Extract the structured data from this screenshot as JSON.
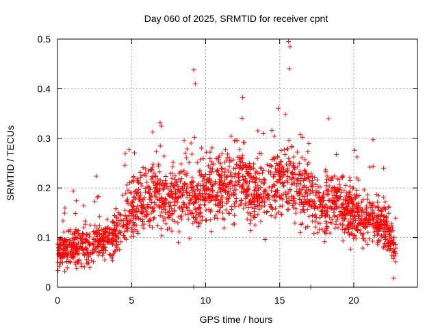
{
  "chart_data": {
    "type": "scatter",
    "title": "Day 060 of 2025, SRMTID for receiver cpnt",
    "xlabel": "GPS time / hours",
    "ylabel": "SRMTID / TECUs",
    "xlim": [
      0,
      24.3
    ],
    "ylim": [
      0,
      0.5
    ],
    "xticks": [
      0,
      5,
      10,
      15,
      20
    ],
    "xtick_labels": [
      "0",
      "5",
      "10",
      "15",
      "20"
    ],
    "yticks": [
      0,
      0.1,
      0.2,
      0.3,
      0.4,
      0.5
    ],
    "ytick_labels": [
      "0",
      "0.1",
      "0.2",
      "0.3",
      "0.4",
      "0.5"
    ],
    "grid": true,
    "marker": "+",
    "series": [
      {
        "name": "SRMTID",
        "color": "#ff0000",
        "x": [
          0.0,
          0.3,
          0.6,
          0.9,
          1.2,
          1.5,
          1.8,
          2.1,
          2.4,
          2.7,
          3.0,
          3.3,
          3.6,
          3.9,
          4.2,
          4.5,
          4.8,
          5.1,
          5.4,
          5.7,
          6.0,
          6.3,
          6.6,
          6.9,
          7.2,
          7.5,
          7.8,
          8.1,
          8.4,
          8.7,
          9.0,
          9.3,
          9.6,
          9.9,
          10.2,
          10.5,
          10.8,
          11.1,
          11.4,
          11.7,
          12.0,
          12.3,
          12.6,
          12.9,
          13.2,
          13.5,
          13.8,
          14.1,
          14.4,
          14.7,
          15.0,
          15.3,
          15.6,
          15.9,
          16.2,
          16.5,
          16.8,
          17.1,
          17.4,
          17.7,
          18.0,
          18.3,
          18.6,
          18.9,
          19.2,
          19.5,
          19.8,
          20.1,
          20.4,
          20.7,
          21.0,
          21.3,
          21.6,
          21.9,
          22.2,
          22.5,
          22.8
        ],
        "y": [
          0.07,
          0.075,
          0.08,
          0.075,
          0.08,
          0.085,
          0.08,
          0.075,
          0.085,
          0.09,
          0.09,
          0.095,
          0.1,
          0.11,
          0.12,
          0.14,
          0.15,
          0.16,
          0.17,
          0.175,
          0.18,
          0.19,
          0.19,
          0.185,
          0.18,
          0.175,
          0.175,
          0.18,
          0.19,
          0.19,
          0.18,
          0.175,
          0.18,
          0.19,
          0.195,
          0.2,
          0.2,
          0.2,
          0.2,
          0.2,
          0.21,
          0.22,
          0.215,
          0.2,
          0.19,
          0.19,
          0.2,
          0.2,
          0.2,
          0.21,
          0.21,
          0.22,
          0.22,
          0.21,
          0.2,
          0.2,
          0.2,
          0.18,
          0.17,
          0.17,
          0.17,
          0.17,
          0.17,
          0.17,
          0.15,
          0.15,
          0.15,
          0.15,
          0.14,
          0.14,
          0.14,
          0.14,
          0.13,
          0.13,
          0.12,
          0.1,
          0.07
        ],
        "notable_points": [
          {
            "x": 9.2,
            "y": 0.438
          },
          {
            "x": 9.3,
            "y": 0.41
          },
          {
            "x": 12.5,
            "y": 0.382
          },
          {
            "x": 14.9,
            "y": 0.36
          },
          {
            "x": 15.6,
            "y": 0.495
          },
          {
            "x": 15.7,
            "y": 0.485
          },
          {
            "x": 15.65,
            "y": 0.44
          },
          {
            "x": 18.3,
            "y": 0.34
          },
          {
            "x": 9.2,
            "y": 0.0
          },
          {
            "x": 17.1,
            "y": 0.0
          },
          {
            "x": 22.7,
            "y": 0.018
          }
        ]
      }
    ]
  }
}
